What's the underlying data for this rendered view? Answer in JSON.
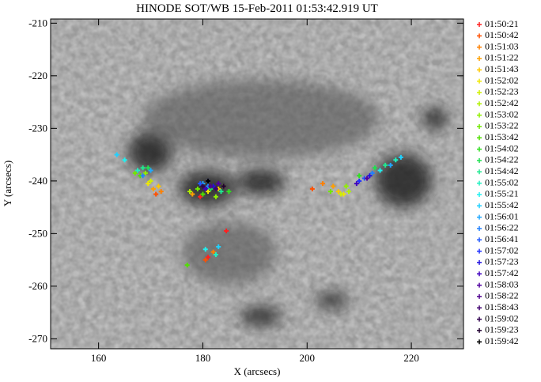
{
  "chart_data": {
    "type": "scatter",
    "title": "HINODE SOT/WB 15-Feb-2011 01:53:42.919 UT",
    "x_label": "X (arcsecs)",
    "y_label": "Y (arcsecs)",
    "xlim": [
      150.8,
      230
    ],
    "xticks": [
      160,
      180,
      200,
      220
    ],
    "ylim": [
      -271.9,
      -209.2
    ],
    "yticks": [
      -270,
      -260,
      -250,
      -240,
      -230,
      -220,
      -210
    ],
    "series": [
      {
        "name": "01:50:21",
        "color": "#ff2020",
        "x": [
          179.5,
          181,
          184.5
        ],
        "values": [
          -243,
          -254.5,
          -249.5
        ]
      },
      {
        "name": "01:50:42",
        "color": "#ff5000",
        "x": [
          171,
          180.5,
          201
        ],
        "values": [
          -242.5,
          -255,
          -241.5
        ]
      },
      {
        "name": "01:51:03",
        "color": "#ff8000",
        "x": [
          172,
          182,
          203
        ],
        "values": [
          -242,
          -253.5,
          -240.5
        ]
      },
      {
        "name": "01:51:22",
        "color": "#ffa000",
        "x": [
          170.5,
          178,
          205
        ],
        "values": [
          -241.5,
          -242.5,
          -241
        ]
      },
      {
        "name": "01:51:43",
        "color": "#ffc800",
        "x": [
          171.5,
          183,
          206
        ],
        "values": [
          -241,
          -241.5,
          -242
        ]
      },
      {
        "name": "01:52:02",
        "color": "#f0e800",
        "x": [
          169.5,
          181,
          207
        ],
        "values": [
          -240.5,
          -242,
          -242.5
        ]
      },
      {
        "name": "01:52:23",
        "color": "#d0f000",
        "x": [
          170,
          184,
          206.5
        ],
        "values": [
          -240,
          -241,
          -242.5
        ]
      },
      {
        "name": "01:52:42",
        "color": "#b0f000",
        "x": [
          168.5,
          177.5,
          208
        ],
        "values": [
          -239,
          -242,
          -242
        ]
      },
      {
        "name": "01:53:02",
        "color": "#90f000",
        "x": [
          169,
          182.5,
          207.5
        ],
        "values": [
          -238.5,
          -243,
          -241
        ]
      },
      {
        "name": "01:53:22",
        "color": "#70e800",
        "x": [
          167,
          179,
          204.5
        ],
        "values": [
          -238.5,
          -241.5,
          -242
        ]
      },
      {
        "name": "01:53:42",
        "color": "#50e000",
        "x": [
          168,
          180,
          177
        ],
        "values": [
          -239,
          -242.5,
          -256
        ]
      },
      {
        "name": "01:54:02",
        "color": "#30e020",
        "x": [
          170,
          185,
          210
        ],
        "values": [
          -238,
          -242,
          -239
        ]
      },
      {
        "name": "01:54:22",
        "color": "#20e050",
        "x": [
          169.5,
          181.5,
          213
        ],
        "values": [
          -237.5,
          -241.5,
          -237.5
        ]
      },
      {
        "name": "01:54:42",
        "color": "#20e890",
        "x": [
          168.5,
          183.5,
          215
        ],
        "values": [
          -237.5,
          -242,
          -237
        ]
      },
      {
        "name": "01:55:02",
        "color": "#20f0c0",
        "x": [
          167.5,
          182.5,
          217
        ],
        "values": [
          -238,
          -254,
          -236
        ]
      },
      {
        "name": "01:55:21",
        "color": "#20f0f0",
        "x": [
          165,
          180.5,
          214
        ],
        "values": [
          -236,
          -253,
          -238
        ]
      },
      {
        "name": "01:55:42",
        "color": "#20d0ff",
        "x": [
          163.5,
          183,
          218
        ],
        "values": [
          -235,
          -252.5,
          -235.5
        ]
      },
      {
        "name": "01:56:01",
        "color": "#20a8ff",
        "x": [
          170,
          180,
          216
        ],
        "values": [
          -238,
          -240.5,
          -237
        ]
      },
      {
        "name": "01:56:22",
        "color": "#2080ff",
        "x": [
          168.5,
          181,
          212.5
        ],
        "values": [
          -239,
          -241,
          -238.5
        ]
      },
      {
        "name": "01:56:41",
        "color": "#2058ff",
        "x": [
          179.5,
          211
        ],
        "values": [
          -240.5,
          -239.5
        ]
      },
      {
        "name": "01:57:02",
        "color": "#2030ff",
        "x": [
          181,
          210
        ],
        "values": [
          -240,
          -240
        ]
      },
      {
        "name": "01:57:23",
        "color": "#2010e0",
        "x": [
          182,
          212
        ],
        "values": [
          -241,
          -239
        ]
      },
      {
        "name": "01:57:42",
        "color": "#4000c0",
        "x": [
          180.5,
          209.5
        ],
        "values": [
          -241.5,
          -240.5
        ]
      },
      {
        "name": "01:58:03",
        "color": "#5000a0",
        "x": [
          183,
          211.5
        ],
        "values": [
          -240.5,
          -239.5
        ]
      },
      {
        "name": "01:58:22",
        "color": "#500090",
        "x": [
          181.5
        ],
        "values": [
          -241
        ]
      },
      {
        "name": "01:58:43",
        "color": "#400070",
        "x": [
          182.5
        ],
        "values": [
          -241.5
        ]
      },
      {
        "name": "01:59:02",
        "color": "#300050",
        "x": [
          180
        ],
        "values": [
          -241
        ]
      },
      {
        "name": "01:59:23",
        "color": "#200030",
        "x": [
          184
        ],
        "values": [
          -241
        ]
      },
      {
        "name": "01:59:42",
        "color": "#000000",
        "x": [
          181
        ],
        "values": [
          -240
        ]
      }
    ]
  }
}
